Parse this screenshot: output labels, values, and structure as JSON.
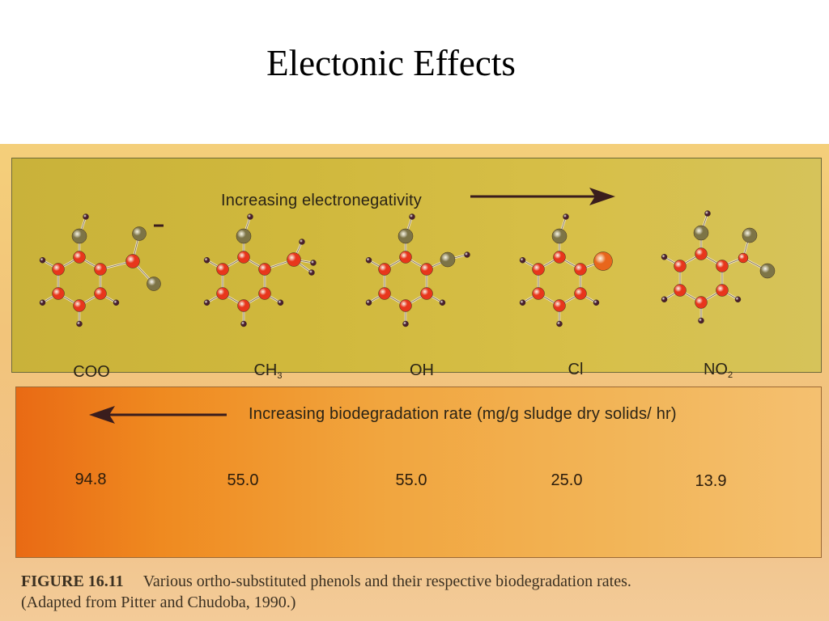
{
  "slide": {
    "title": "Electonic Effects"
  },
  "figure": {
    "electronegativity_heading": "Increasing electronegativity",
    "biodegradation_heading": "Increasing biodegradation rate (mg/g sludge dry solids/ hr)",
    "substituents": [
      {
        "label": "COO",
        "sub": "",
        "rate": "94.8"
      },
      {
        "label": "CH",
        "sub": "3",
        "rate": "55.0"
      },
      {
        "label": "OH",
        "sub": "",
        "rate": "55.0"
      },
      {
        "label": "Cl",
        "sub": "",
        "rate": "25.0"
      },
      {
        "label": "NO",
        "sub": "2",
        "rate": "13.9"
      }
    ],
    "caption": {
      "label": "FIGURE 16.11",
      "text": "Various ortho-substituted phenols and their respective biodegradation rates.",
      "source": "(Adapted from Pitter and Chudoba, 1990.)"
    }
  },
  "colors": {
    "carbon_atom": "#e8361c",
    "hydrogen_atom": "#4a1f2e",
    "oxygen_atom": "#7d7446",
    "chlorine_atom": "#e8661c",
    "arrow": "#3a1d1d"
  }
}
